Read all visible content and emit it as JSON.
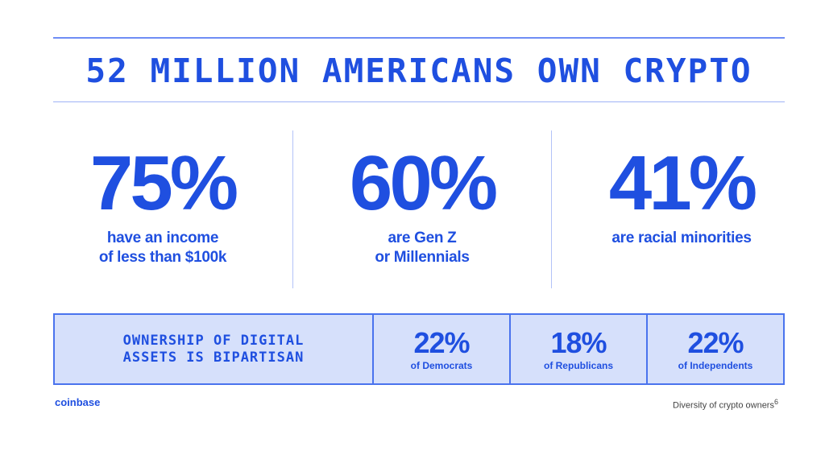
{
  "headline": "52 MILLION AMERICANS OWN CRYPTO",
  "stats": [
    {
      "value": "75%",
      "description": "have an income\nof less than $100k"
    },
    {
      "value": "60%",
      "description": "are Gen Z\nor Millennials"
    },
    {
      "value": "41%",
      "description": "are racial minorities"
    }
  ],
  "bipartisan": {
    "label": "OWNERSHIP OF DIGITAL\nASSETS IS BIPARTISAN",
    "items": [
      {
        "value": "22%",
        "label": "of Democrats"
      },
      {
        "value": "18%",
        "label": "of Republicans"
      },
      {
        "value": "22%",
        "label": "of Independents"
      }
    ]
  },
  "footer": {
    "brand": "coinbase",
    "note": "Diversity of crypto owners",
    "page_number": "6"
  },
  "colors": {
    "accent": "#1f4fe0",
    "band_fill": "#d6e0fb",
    "band_border": "#4a73ee"
  }
}
